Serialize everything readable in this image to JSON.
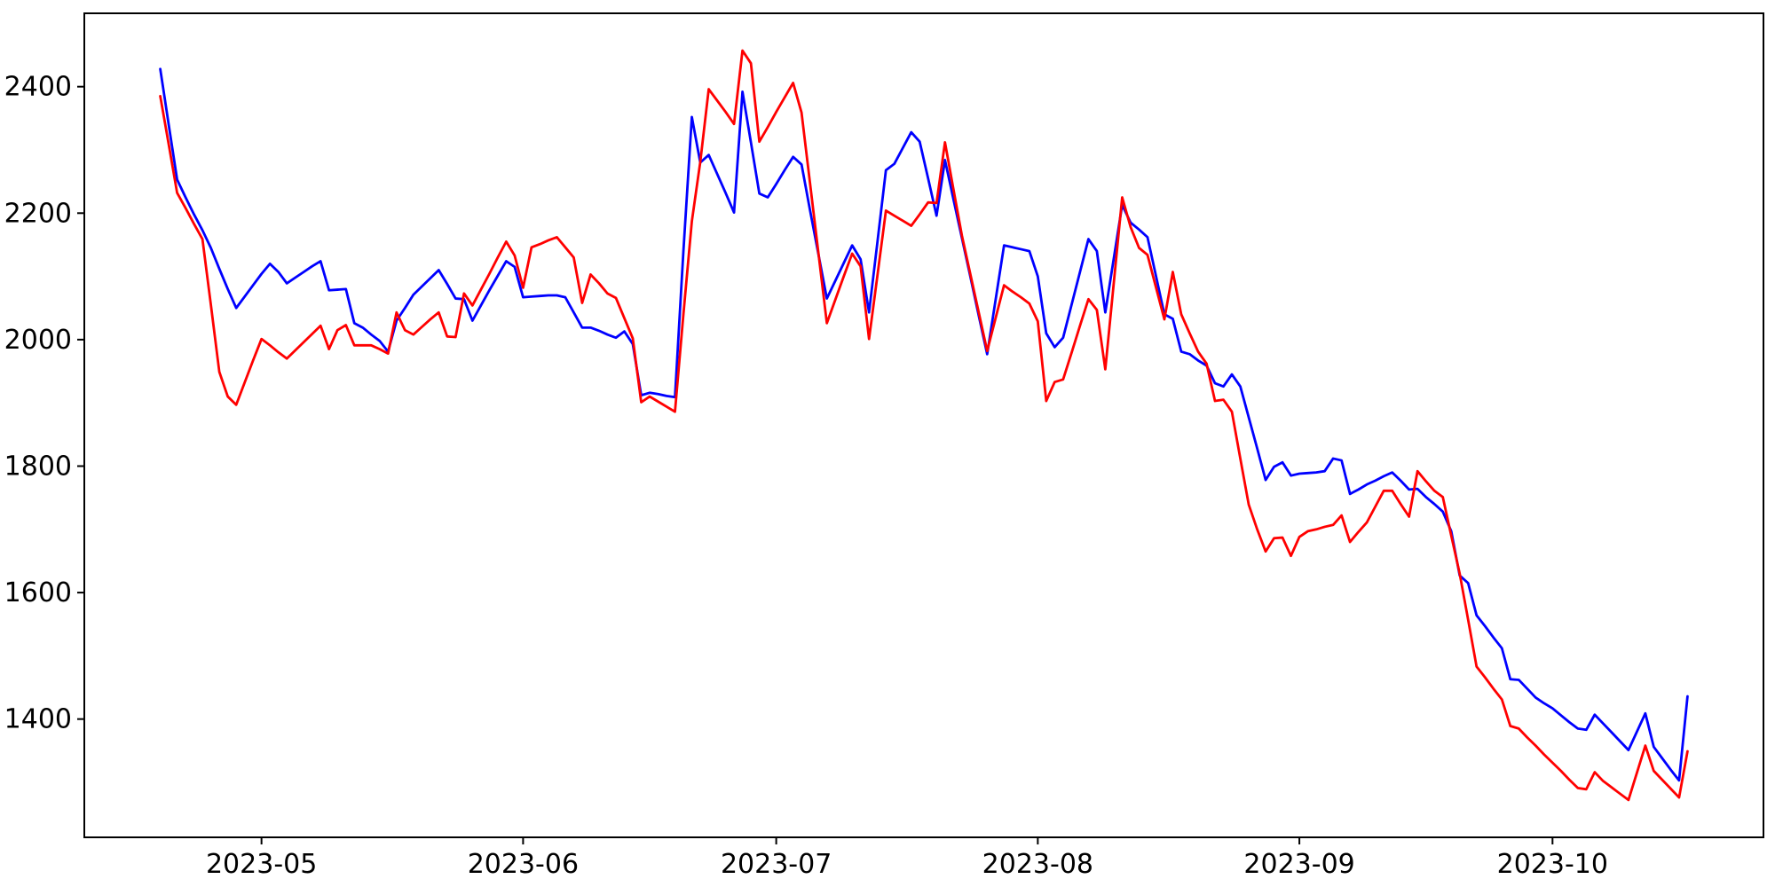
{
  "page": {
    "background": "#ffffff"
  },
  "chart_data": {
    "type": "line",
    "title": "",
    "xlabel": "",
    "ylabel": "",
    "grid": false,
    "legend": "none",
    "axes": {
      "x_range": [
        "2023-04-10",
        "2023-10-26"
      ],
      "y_range": [
        1213,
        2516
      ],
      "y_ticks": [
        1400,
        1600,
        1800,
        2000,
        2200,
        2400
      ],
      "x_ticks": [
        {
          "date": "2023-05-01",
          "label": "2023-05"
        },
        {
          "date": "2023-06-01",
          "label": "2023-06"
        },
        {
          "date": "2023-07-01",
          "label": "2023-07"
        },
        {
          "date": "2023-08-01",
          "label": "2023-08"
        },
        {
          "date": "2023-09-01",
          "label": "2023-09"
        },
        {
          "date": "2023-10-01",
          "label": "2023-10"
        }
      ],
      "spine_color": "#000000",
      "tick_color": "#000000",
      "tick_label_color": "#000000"
    },
    "series": [
      {
        "name": "blue-line",
        "color": "#0000ff",
        "start_date": "2023-04-19",
        "frequency": "daily",
        "values": [
          2428,
          2340,
          2253,
          2225,
          2198,
          2173,
          2145,
          2112,
          2080,
          2050,
          2068,
          2086,
          2104,
          2120,
          2107,
          2089,
          2098,
          2107,
          2116,
          2124,
          2078,
          2079,
          2080,
          2026,
          2019,
          2008,
          1998,
          1981,
          2030,
          2050,
          2071,
          2084,
          2097,
          2110,
          2088,
          2065,
          2064,
          2030,
          2054,
          2078,
          2101,
          2124,
          2115,
          2067,
          2068,
          2069,
          2070,
          2070,
          2067,
          2043,
          2019,
          2019,
          2014,
          2008,
          2003,
          2013,
          1993,
          1912,
          1916,
          1914,
          1911,
          1909,
          2140,
          2352,
          2280,
          2292,
          2262,
          2232,
          2201,
          2392,
          2312,
          2231,
          2225,
          2246,
          2268,
          2289,
          2277,
          2205,
          2135,
          2065,
          2093,
          2121,
          2149,
          2127,
          2043,
          2155,
          2268,
          2278,
          2303,
          2328,
          2313,
          2255,
          2196,
          2284,
          2222,
          2161,
          2100,
          2038,
          1977,
          2063,
          2149,
          2146,
          2143,
          2140,
          2100,
          2010,
          1988,
          2003,
          2055,
          2107,
          2159,
          2140,
          2043,
          2128,
          2213,
          2185,
          2174,
          2162,
          2101,
          2040,
          2033,
          1981,
          1977,
          1967,
          1959,
          1931,
          1926,
          1945,
          1926,
          1877,
          1828,
          1778,
          1799,
          1806,
          1785,
          1788,
          1789,
          1790,
          1792,
          1812,
          1809,
          1756,
          1763,
          1771,
          1777,
          1784,
          1790,
          1777,
          1763,
          1764,
          1751,
          1740,
          1728,
          1697,
          1627,
          1615,
          1564,
          1547,
          1529,
          1512,
          1463,
          1462,
          1448,
          1434,
          1425,
          1417,
          1406,
          1395,
          1385,
          1383,
          1407,
          1393,
          1379,
          1365,
          1351,
          1380,
          1409,
          1356,
          1338,
          1320,
          1303,
          1436
        ]
      },
      {
        "name": "red-line",
        "color": "#ff0000",
        "start_date": "2023-04-19",
        "frequency": "daily",
        "values": [
          2385,
          2309,
          2232,
          2208,
          2183,
          2159,
          2055,
          1949,
          1910,
          1897,
          1932,
          1967,
          2001,
          1991,
          1980,
          1970,
          1983,
          1996,
          2009,
          2022,
          1985,
          2015,
          2023,
          1991,
          1991,
          1991,
          1985,
          1978,
          2043,
          2015,
          2008,
          2020,
          2032,
          2043,
          2005,
          2004,
          2073,
          2054,
          2079,
          2104,
          2130,
          2155,
          2133,
          2082,
          2146,
          2151,
          2157,
          2162,
          2146,
          2130,
          2058,
          2103,
          2089,
          2073,
          2066,
          2034,
          2002,
          1901,
          1910,
          1902,
          1894,
          1886,
          2040,
          2187,
          2281,
          2396,
          2378,
          2360,
          2341,
          2457,
          2437,
          2313,
          2336,
          2360,
          2383,
          2406,
          2359,
          2248,
          2137,
          2026,
          2063,
          2100,
          2136,
          2116,
          2001,
          2102,
          2204,
          2196,
          2188,
          2180,
          2198,
          2217,
          2216,
          2312,
          2238,
          2165,
          2104,
          2043,
          1982,
          2034,
          2086,
          2076,
          2067,
          2057,
          2029,
          1903,
          1933,
          1937,
          1979,
          2022,
          2064,
          2047,
          1953,
          2089,
          2225,
          2178,
          2145,
          2134,
          2083,
          2032,
          2107,
          2040,
          2010,
          1981,
          1962,
          1903,
          1905,
          1886,
          1812,
          1739,
          1700,
          1665,
          1686,
          1687,
          1658,
          1688,
          1697,
          1700,
          1704,
          1707,
          1722,
          1680,
          1696,
          1711,
          1736,
          1761,
          1761,
          1740,
          1720,
          1792,
          1776,
          1761,
          1751,
          1690,
          1630,
          1557,
          1483,
          1466,
          1448,
          1431,
          1389,
          1385,
          1371,
          1358,
          1344,
          1331,
          1318,
          1304,
          1291,
          1289,
          1316,
          1302,
          1292,
          1282,
          1272,
          1315,
          1358,
          1318,
          1304,
          1290,
          1276,
          1349
        ]
      }
    ]
  }
}
